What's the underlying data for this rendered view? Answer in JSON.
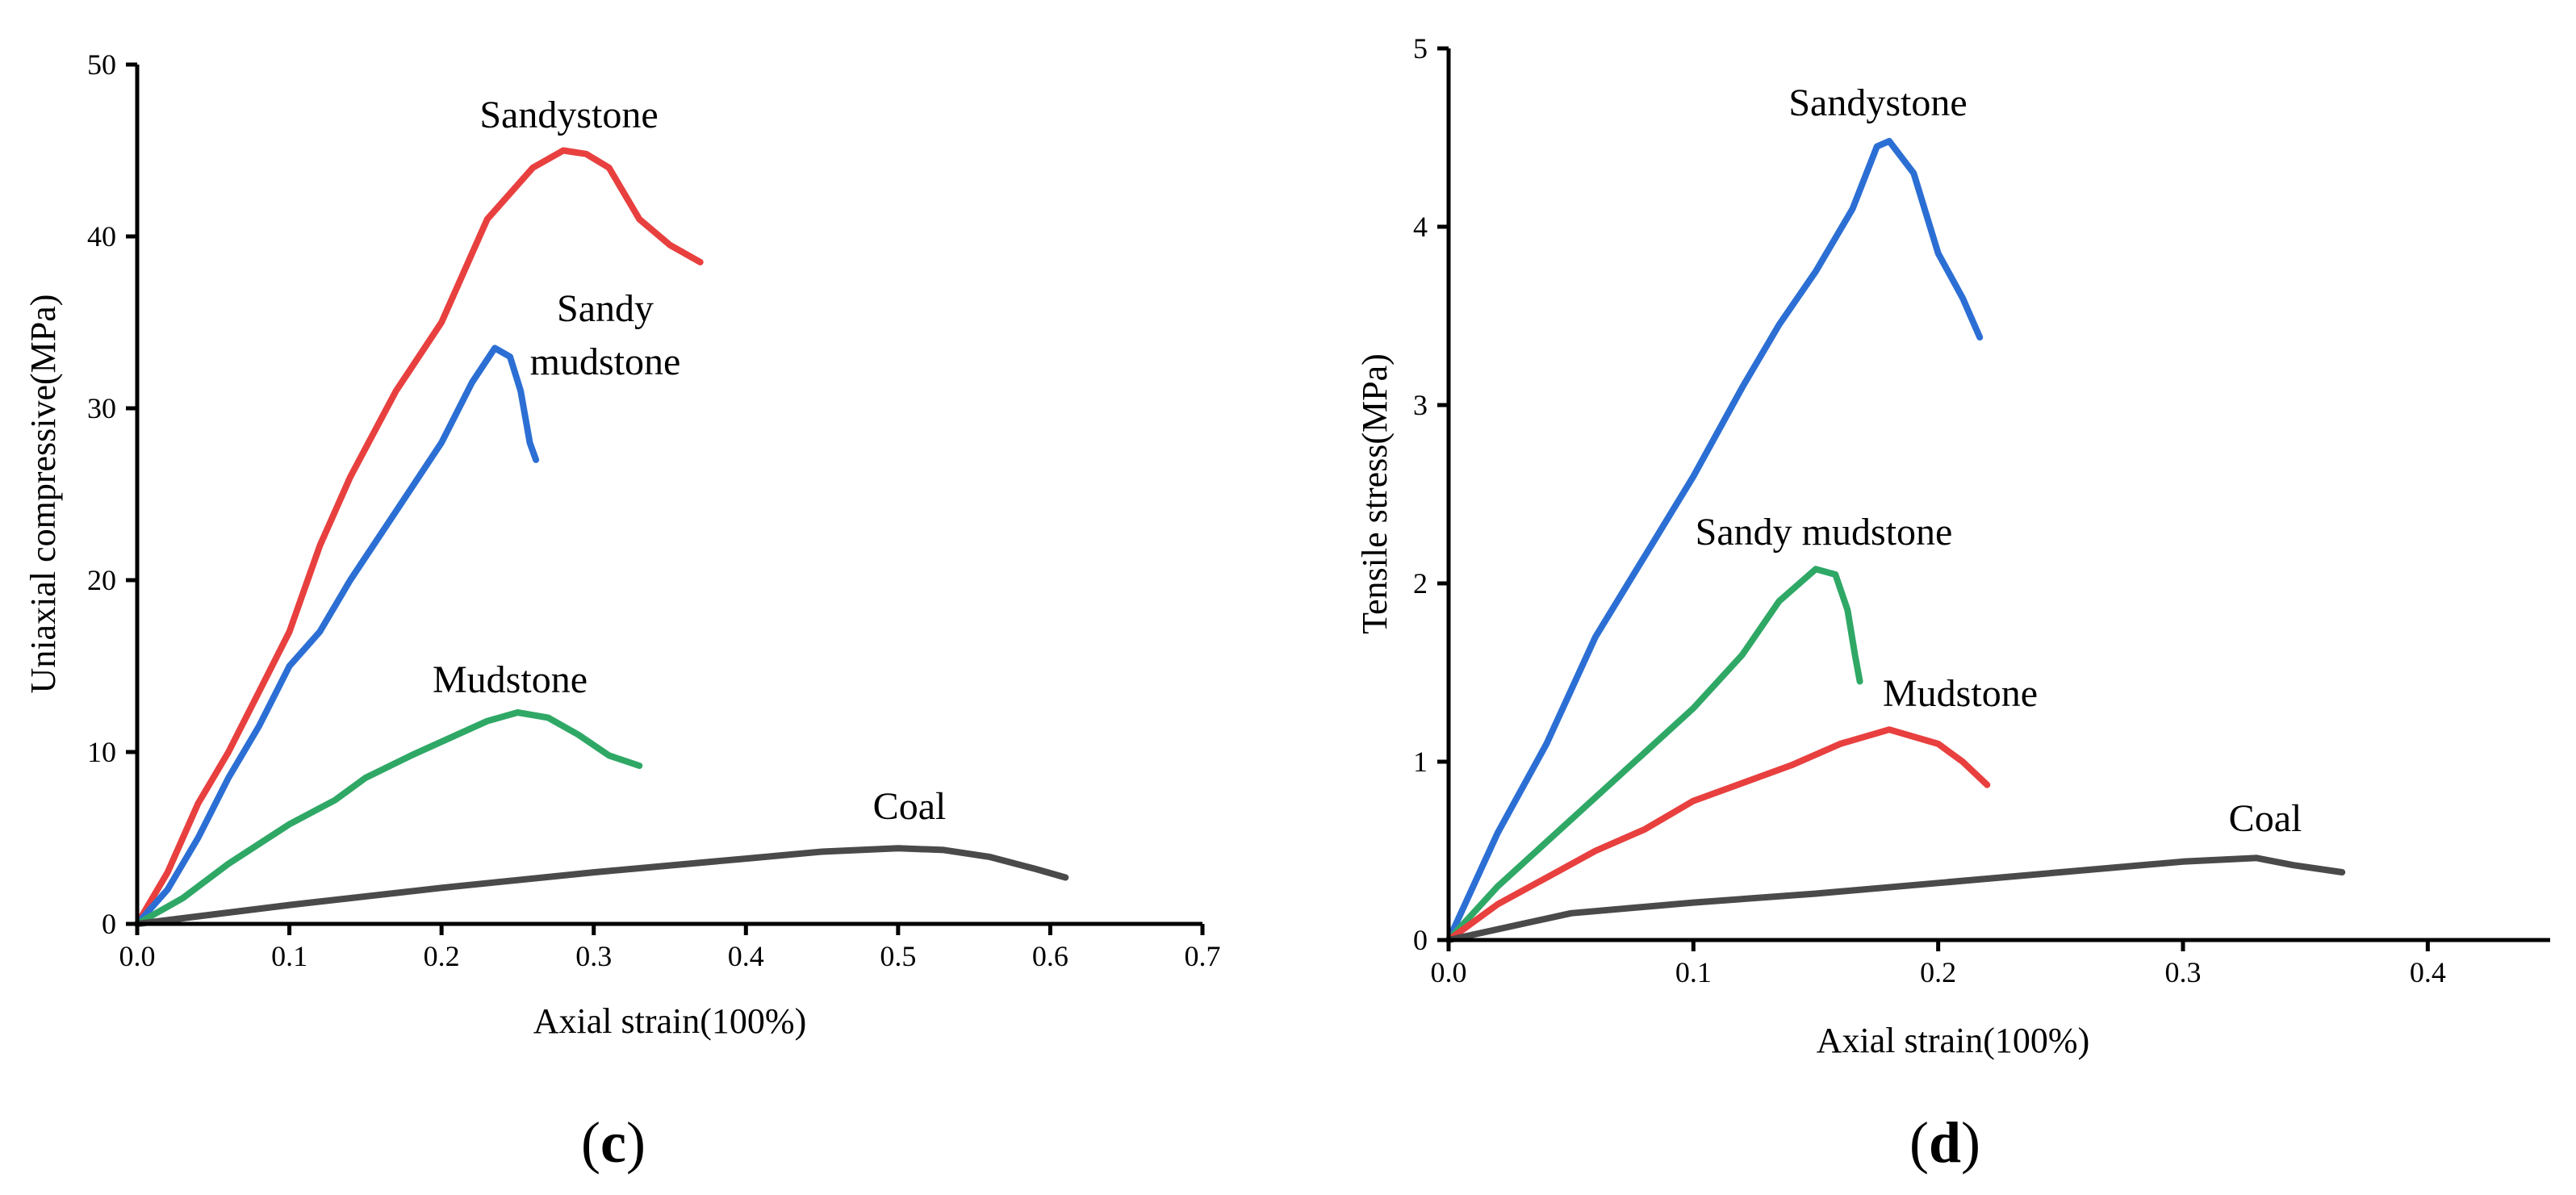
{
  "chart_data": [
    {
      "type": "line",
      "panel_label": "c",
      "xlabel": "Axial strain(100%)",
      "ylabel": "Uniaxial compressive(MPa)",
      "xlim": [
        0,
        0.7
      ],
      "ylim": [
        0,
        50
      ],
      "xticks": [
        "0.0",
        "0.1",
        "0.2",
        "0.3",
        "0.4",
        "0.5",
        "0.6",
        "0.7"
      ],
      "yticks": [
        "0",
        "10",
        "20",
        "30",
        "40",
        "50"
      ],
      "grid": false,
      "series": [
        {
          "name": "Sandystone",
          "label_lines": [
            "Sandystone"
          ],
          "color": "#e8403f",
          "points": [
            [
              0,
              0
            ],
            [
              0.02,
              3
            ],
            [
              0.04,
              7
            ],
            [
              0.06,
              10
            ],
            [
              0.08,
              13.5
            ],
            [
              0.1,
              17
            ],
            [
              0.12,
              22
            ],
            [
              0.14,
              26
            ],
            [
              0.17,
              31
            ],
            [
              0.2,
              35
            ],
            [
              0.23,
              41
            ],
            [
              0.26,
              44
            ],
            [
              0.28,
              45
            ],
            [
              0.295,
              44.8
            ],
            [
              0.31,
              44
            ],
            [
              0.33,
              41
            ],
            [
              0.35,
              39.5
            ],
            [
              0.37,
              38.5
            ]
          ]
        },
        {
          "name": "Sandy mudstone",
          "label_lines": [
            "Sandy",
            "mudstone"
          ],
          "color": "#2c6fd4",
          "points": [
            [
              0,
              0
            ],
            [
              0.02,
              2
            ],
            [
              0.04,
              5
            ],
            [
              0.06,
              8.5
            ],
            [
              0.08,
              11.5
            ],
            [
              0.1,
              15
            ],
            [
              0.12,
              17
            ],
            [
              0.14,
              20
            ],
            [
              0.17,
              24
            ],
            [
              0.2,
              28
            ],
            [
              0.22,
              31.5
            ],
            [
              0.235,
              33.5
            ],
            [
              0.245,
              33
            ],
            [
              0.252,
              31
            ],
            [
              0.258,
              28
            ],
            [
              0.262,
              27
            ]
          ]
        },
        {
          "name": "Mudstone",
          "label_lines": [
            "Mudstone"
          ],
          "color": "#2fa866",
          "points": [
            [
              0,
              0
            ],
            [
              0.03,
              1.5
            ],
            [
              0.06,
              3.5
            ],
            [
              0.1,
              5.8
            ],
            [
              0.13,
              7.2
            ],
            [
              0.15,
              8.5
            ],
            [
              0.18,
              9.8
            ],
            [
              0.21,
              11
            ],
            [
              0.23,
              11.8
            ],
            [
              0.25,
              12.3
            ],
            [
              0.27,
              12
            ],
            [
              0.29,
              11
            ],
            [
              0.31,
              9.8
            ],
            [
              0.33,
              9.2
            ]
          ]
        },
        {
          "name": "Coal",
          "label_lines": [
            "Coal"
          ],
          "color": "#4a4a4a",
          "points": [
            [
              0,
              0
            ],
            [
              0.1,
              1.1
            ],
            [
              0.2,
              2.1
            ],
            [
              0.3,
              3.0
            ],
            [
              0.4,
              3.8
            ],
            [
              0.45,
              4.2
            ],
            [
              0.5,
              4.4
            ],
            [
              0.53,
              4.3
            ],
            [
              0.56,
              3.9
            ],
            [
              0.59,
              3.2
            ],
            [
              0.61,
              2.7
            ]
          ]
        }
      ]
    },
    {
      "type": "line",
      "panel_label": "d",
      "xlabel": "Axial strain(100%)",
      "ylabel": "Tensile stress(MPa)",
      "xlim": [
        0,
        0.45
      ],
      "ylim": [
        0,
        5
      ],
      "xticks": [
        "0.0",
        "0.1",
        "0.2",
        "0.3",
        "0.4"
      ],
      "yticks": [
        "0",
        "1",
        "2",
        "3",
        "4",
        "5"
      ],
      "grid": false,
      "series": [
        {
          "name": "Sandystone",
          "label_lines": [
            "Sandystone"
          ],
          "color": "#2c6fd4",
          "points": [
            [
              0,
              0
            ],
            [
              0.02,
              0.6
            ],
            [
              0.04,
              1.1
            ],
            [
              0.06,
              1.7
            ],
            [
              0.08,
              2.15
            ],
            [
              0.1,
              2.6
            ],
            [
              0.12,
              3.1
            ],
            [
              0.135,
              3.45
            ],
            [
              0.15,
              3.75
            ],
            [
              0.165,
              4.1
            ],
            [
              0.175,
              4.45
            ],
            [
              0.18,
              4.48
            ],
            [
              0.19,
              4.3
            ],
            [
              0.2,
              3.85
            ],
            [
              0.21,
              3.6
            ],
            [
              0.217,
              3.38
            ]
          ]
        },
        {
          "name": "Sandy mudstone",
          "label_lines": [
            "Sandy mudstone"
          ],
          "color": "#2fa866",
          "points": [
            [
              0,
              0
            ],
            [
              0.02,
              0.3
            ],
            [
              0.04,
              0.55
            ],
            [
              0.06,
              0.8
            ],
            [
              0.08,
              1.05
            ],
            [
              0.1,
              1.3
            ],
            [
              0.12,
              1.6
            ],
            [
              0.135,
              1.9
            ],
            [
              0.15,
              2.08
            ],
            [
              0.158,
              2.05
            ],
            [
              0.163,
              1.85
            ],
            [
              0.166,
              1.6
            ],
            [
              0.168,
              1.45
            ]
          ]
        },
        {
          "name": "Mudstone",
          "label_lines": [
            "Mudstone"
          ],
          "color": "#e8403f",
          "points": [
            [
              0,
              0
            ],
            [
              0.02,
              0.2
            ],
            [
              0.04,
              0.35
            ],
            [
              0.06,
              0.5
            ],
            [
              0.08,
              0.62
            ],
            [
              0.1,
              0.78
            ],
            [
              0.12,
              0.88
            ],
            [
              0.14,
              0.98
            ],
            [
              0.16,
              1.1
            ],
            [
              0.18,
              1.18
            ],
            [
              0.2,
              1.1
            ],
            [
              0.21,
              1.0
            ],
            [
              0.22,
              0.87
            ]
          ]
        },
        {
          "name": "Coal",
          "label_lines": [
            "Coal"
          ],
          "color": "#4a4a4a",
          "points": [
            [
              0,
              0
            ],
            [
              0.05,
              0.15
            ],
            [
              0.1,
              0.21
            ],
            [
              0.15,
              0.26
            ],
            [
              0.2,
              0.32
            ],
            [
              0.25,
              0.38
            ],
            [
              0.3,
              0.44
            ],
            [
              0.33,
              0.46
            ],
            [
              0.345,
              0.42
            ],
            [
              0.365,
              0.38
            ]
          ]
        }
      ]
    }
  ]
}
